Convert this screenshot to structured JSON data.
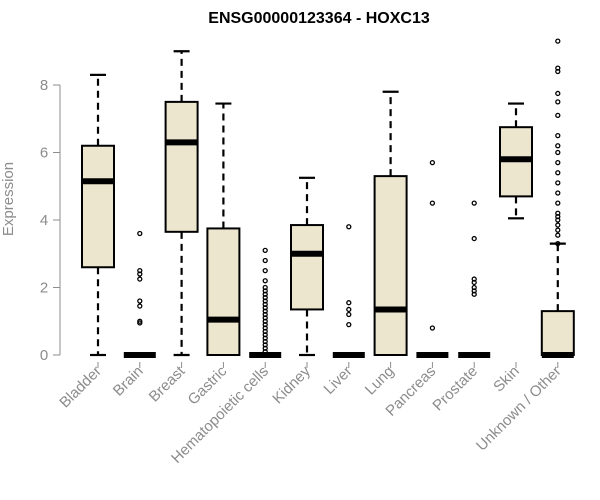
{
  "chart_data": {
    "type": "box",
    "title": "ENSG00000123364 - HOXC13",
    "xlabel": "",
    "ylabel": "Expression",
    "ylim": [
      0,
      9.4
    ],
    "yticks": [
      0,
      2,
      4,
      6,
      8
    ],
    "box_fill": "#ede6cf",
    "categories": [
      "Bladder",
      "Brain",
      "Breast",
      "Gastric",
      "Hematopoietic cells",
      "Kidney",
      "Liver",
      "Lung",
      "Pancreas",
      "Prostate",
      "Skin",
      "Unknown / Other"
    ],
    "boxes": [
      {
        "min": 0,
        "q1": 2.6,
        "median": 5.15,
        "q3": 6.2,
        "max": 8.3,
        "outliers": []
      },
      {
        "min": 0,
        "q1": 0,
        "median": 0,
        "q3": 0,
        "max": 0,
        "outliers": [
          0.95,
          1.0,
          1.45,
          1.6,
          2.25,
          2.4,
          2.5,
          3.6
        ]
      },
      {
        "min": 0,
        "q1": 3.65,
        "median": 6.3,
        "q3": 7.5,
        "max": 9.0,
        "outliers": []
      },
      {
        "min": 0,
        "q1": 0,
        "median": 1.05,
        "q3": 3.75,
        "max": 7.45,
        "outliers": []
      },
      {
        "min": 0,
        "q1": 0,
        "median": 0,
        "q3": 0,
        "max": 0,
        "outliers": [
          0.1,
          0.2,
          0.3,
          0.4,
          0.5,
          0.6,
          0.7,
          0.8,
          0.9,
          1.0,
          1.1,
          1.2,
          1.3,
          1.4,
          1.5,
          1.6,
          1.7,
          1.8,
          1.9,
          2.0,
          2.2,
          2.5,
          2.8,
          3.1
        ]
      },
      {
        "min": 0,
        "q1": 1.35,
        "median": 3.0,
        "q3": 3.85,
        "max": 5.25,
        "outliers": []
      },
      {
        "min": 0,
        "q1": 0,
        "median": 0,
        "q3": 0,
        "max": 0,
        "outliers": [
          0.9,
          1.2,
          1.35,
          1.55,
          3.8
        ]
      },
      {
        "min": 0,
        "q1": 0,
        "median": 1.35,
        "q3": 5.3,
        "max": 7.8,
        "outliers": []
      },
      {
        "min": 0,
        "q1": 0,
        "median": 0,
        "q3": 0,
        "max": 0,
        "outliers": [
          0.8,
          4.5,
          5.7
        ]
      },
      {
        "min": 0,
        "q1": 0,
        "median": 0,
        "q3": 0,
        "max": 0,
        "outliers": [
          1.8,
          1.9,
          2.0,
          2.15,
          2.25,
          3.45,
          4.5
        ]
      },
      {
        "min": 4.05,
        "q1": 4.7,
        "median": 5.8,
        "q3": 6.75,
        "max": 7.45,
        "outliers": []
      },
      {
        "min": 0,
        "q1": 0,
        "median": 0,
        "q3": 1.3,
        "max": 3.3,
        "outliers": [
          3.3,
          3.55,
          3.7,
          3.85,
          4.0,
          4.1,
          4.2,
          4.5,
          4.8,
          5.1,
          5.4,
          5.7,
          6.0,
          6.2,
          6.5,
          7.1,
          7.5,
          7.75,
          8.4,
          8.5,
          9.3
        ]
      }
    ]
  }
}
